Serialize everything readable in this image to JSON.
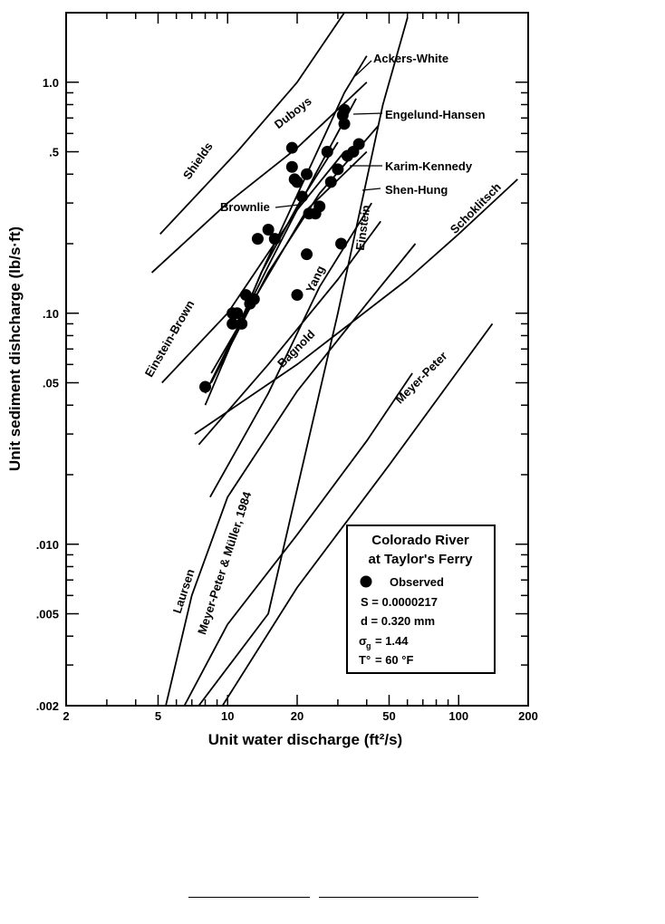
{
  "chart_data": {
    "type": "line",
    "xlabel": "Unit water discharge (ft²/s)",
    "ylabel": "Unit sediment dishcharge (lb/s·ft)",
    "x_scale": "log",
    "y_scale": "log",
    "xlim": [
      2,
      200
    ],
    "ylim": [
      0.002,
      2.0
    ],
    "x_ticks": [
      2,
      5,
      10,
      20,
      50,
      100,
      200
    ],
    "x_tick_labels": [
      "2",
      "5",
      "10",
      "20",
      "50",
      "100",
      "200"
    ],
    "y_ticks": [
      0.002,
      0.005,
      0.01,
      0.05,
      0.1,
      0.5,
      1.0
    ],
    "y_tick_labels": [
      ".002",
      ".005",
      ".010",
      ".05",
      ".10",
      ".5",
      "1.0"
    ],
    "series": [
      {
        "name": "Shields",
        "x": [
          5.1,
          11,
          20,
          32
        ],
        "y": [
          0.22,
          0.5,
          1.0,
          2.0
        ]
      },
      {
        "name": "Duboys",
        "x": [
          4.7,
          10,
          20,
          40
        ],
        "y": [
          0.15,
          0.3,
          0.52,
          1.0
        ]
      },
      {
        "name": "Ackers-White",
        "x": [
          8,
          14,
          22,
          32,
          40
        ],
        "y": [
          0.04,
          0.15,
          0.4,
          0.9,
          1.3
        ]
      },
      {
        "name": "Engelund-Hansen",
        "x": [
          8,
          15,
          24,
          36
        ],
        "y": [
          0.045,
          0.16,
          0.4,
          0.85
        ]
      },
      {
        "name": "Karim-Kennedy",
        "x": [
          8.5,
          15,
          25,
          45
        ],
        "y": [
          0.05,
          0.15,
          0.33,
          0.65
        ]
      },
      {
        "name": "Shen-Hung",
        "x": [
          8.5,
          14,
          22,
          40
        ],
        "y": [
          0.055,
          0.13,
          0.28,
          0.5
        ]
      },
      {
        "name": "Brownlie",
        "x": [
          9.5,
          14,
          20,
          30
        ],
        "y": [
          0.06,
          0.15,
          0.29,
          0.55
        ]
      },
      {
        "name": "Einstein-Brown",
        "x": [
          5.2,
          10,
          20,
          32
        ],
        "y": [
          0.05,
          0.1,
          0.28,
          0.5
        ]
      },
      {
        "name": "Yang",
        "x": [
          8.4,
          15,
          25,
          42
        ],
        "y": [
          0.016,
          0.045,
          0.13,
          0.3
        ]
      },
      {
        "name": "Bagnold",
        "x": [
          7.5,
          15,
          30,
          46
        ],
        "y": [
          0.027,
          0.06,
          0.14,
          0.25
        ]
      },
      {
        "name": "Einstein",
        "x": [
          7.5,
          15,
          30,
          47,
          60
        ],
        "y": [
          0.002,
          0.005,
          0.1,
          0.8,
          1.9
        ]
      },
      {
        "name": "Schoklitsch",
        "x": [
          7.2,
          20,
          60,
          100,
          180
        ],
        "y": [
          0.03,
          0.06,
          0.14,
          0.22,
          0.38
        ]
      },
      {
        "name": "Meyer-Peter",
        "x": [
          9.5,
          20,
          50,
          140
        ],
        "y": [
          0.002,
          0.0065,
          0.022,
          0.09
        ]
      },
      {
        "name": "Laursen",
        "x": [
          5.4,
          7,
          10,
          20,
          40,
          65
        ],
        "y": [
          0.002,
          0.006,
          0.016,
          0.046,
          0.11,
          0.2
        ]
      },
      {
        "name": "Meyer-Peter & Müller, 1984",
        "x": [
          6.5,
          10,
          20,
          40,
          63
        ],
        "y": [
          0.002,
          0.0045,
          0.011,
          0.028,
          0.055
        ]
      }
    ],
    "observed": {
      "name": "Observed",
      "x": [
        8,
        10.5,
        11,
        10.5,
        11.5,
        12,
        12.5,
        13,
        13.5,
        15,
        16,
        19,
        19,
        19.5,
        20,
        21,
        22,
        22,
        22.5,
        24,
        25,
        27,
        30,
        31,
        31.5,
        32,
        32,
        33,
        35,
        37,
        28,
        20
      ],
      "y": [
        0.048,
        0.1,
        0.1,
        0.09,
        0.09,
        0.12,
        0.11,
        0.115,
        0.21,
        0.23,
        0.21,
        0.52,
        0.43,
        0.38,
        0.37,
        0.32,
        0.4,
        0.18,
        0.27,
        0.27,
        0.29,
        0.5,
        0.42,
        0.2,
        0.72,
        0.76,
        0.66,
        0.48,
        0.5,
        0.54,
        0.37,
        0.12
      ]
    },
    "legend": {
      "placement": "bottom-right",
      "title_line1": "Colorado River",
      "title_line2": "at Taylor's Ferry",
      "entries": [
        "Observed",
        "S = 0.0000217",
        "d = 0.320 mm",
        "= 1.44",
        "= 60 °F"
      ],
      "symbol_sigma": "σ",
      "symbol_sigma_sub": "g",
      "symbol_temp": "T°"
    },
    "grid": false
  }
}
